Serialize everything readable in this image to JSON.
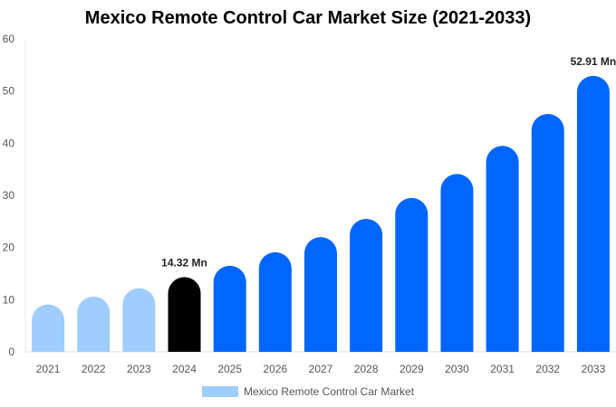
{
  "chart_data": {
    "type": "bar",
    "title": "Mexico Remote Control Car Market Size (2021-2033)",
    "categories": [
      "2021",
      "2022",
      "2023",
      "2024",
      "2025",
      "2026",
      "2027",
      "2028",
      "2029",
      "2030",
      "2031",
      "2032",
      "2033"
    ],
    "series": [
      {
        "name": "Mexico Remote Control Car Market",
        "values": [
          9.1,
          10.6,
          12.2,
          14.32,
          16.5,
          19.1,
          22.0,
          25.5,
          29.5,
          34.1,
          39.5,
          45.6,
          52.91
        ]
      }
    ],
    "data_labels": {
      "3": "14.32 Mn",
      "12": "52.91 Mn"
    },
    "yticks": [
      0,
      10,
      20,
      30,
      40,
      50,
      60
    ],
    "ylim": [
      0,
      60
    ],
    "xlabel": "",
    "ylabel": "",
    "grid": false,
    "legend": "bottom",
    "colors": {
      "historical": "#9FCDFE",
      "base_year": "#000000",
      "forecast": "#0066FF"
    }
  }
}
